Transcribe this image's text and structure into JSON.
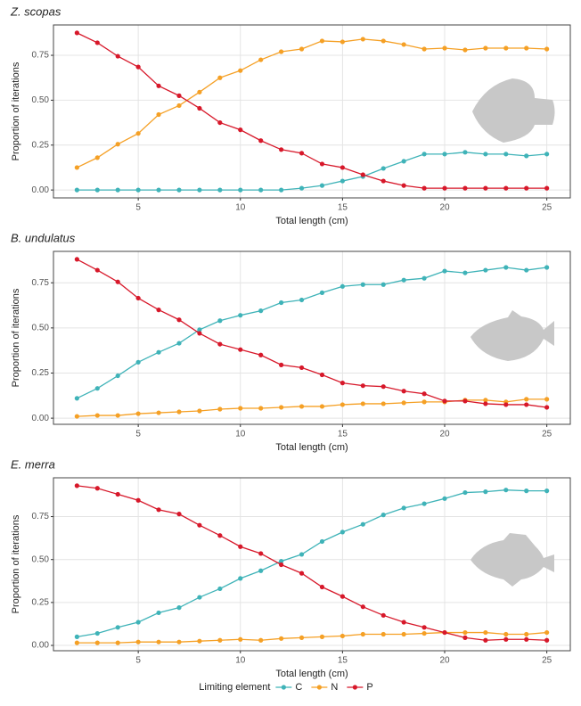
{
  "legend": {
    "title": "Limiting element",
    "position": "bottom"
  },
  "chart_data": [
    {
      "type": "line",
      "title": "Z. scopas",
      "x_label": "Total length (cm)",
      "y_label": "Proportion of iterations",
      "x": [
        2,
        3,
        4,
        5,
        6,
        7,
        8,
        9,
        10,
        11,
        12,
        13,
        14,
        15,
        16,
        17,
        18,
        19,
        20,
        21,
        22,
        23,
        24,
        25
      ],
      "xlim": [
        0.85,
        26.15
      ],
      "xticks": [
        5,
        10,
        15,
        20,
        25
      ],
      "ylim": [
        -0.044,
        0.919
      ],
      "yticks": [
        {
          "value": 0,
          "label": "0.00"
        },
        {
          "value": 0.25,
          "label": "0.25"
        },
        {
          "value": 0.5,
          "label": "0.50"
        },
        {
          "value": 0.75,
          "label": "0.75"
        }
      ],
      "grid": true,
      "series": [
        {
          "name": "C",
          "color": "#3fb3b8",
          "values": [
            0,
            0,
            0,
            0,
            0,
            0,
            0,
            0,
            0,
            0,
            0,
            0.01,
            0.025,
            0.05,
            0.075,
            0.12,
            0.16,
            0.2,
            0.2,
            0.21,
            0.2,
            0.2,
            0.19,
            0.2
          ]
        },
        {
          "name": "N",
          "color": "#f5a025",
          "values": [
            0.125,
            0.18,
            0.255,
            0.315,
            0.42,
            0.47,
            0.545,
            0.625,
            0.665,
            0.725,
            0.77,
            0.785,
            0.83,
            0.825,
            0.84,
            0.83,
            0.81,
            0.785,
            0.79,
            0.78,
            0.79,
            0.79,
            0.79,
            0.785
          ]
        },
        {
          "name": "P",
          "color": "#d7182a",
          "values": [
            0.875,
            0.82,
            0.745,
            0.685,
            0.58,
            0.525,
            0.455,
            0.375,
            0.335,
            0.275,
            0.225,
            0.205,
            0.145,
            0.125,
            0.085,
            0.05,
            0.025,
            0.01,
            0.01,
            0.01,
            0.01,
            0.01,
            0.01,
            0.01
          ]
        }
      ]
    },
    {
      "type": "line",
      "title": "B. undulatus",
      "x_label": "Total length (cm)",
      "y_label": "Proportion of iterations",
      "x": [
        2,
        3,
        4,
        5,
        6,
        7,
        8,
        9,
        10,
        11,
        12,
        13,
        14,
        15,
        16,
        17,
        18,
        19,
        20,
        21,
        22,
        23,
        24,
        25
      ],
      "xlim": [
        0.85,
        26.15
      ],
      "xticks": [
        5,
        10,
        15,
        20,
        25
      ],
      "ylim": [
        -0.034,
        0.924
      ],
      "yticks": [
        {
          "value": 0,
          "label": "0.00"
        },
        {
          "value": 0.25,
          "label": "0.25"
        },
        {
          "value": 0.5,
          "label": "0.50"
        },
        {
          "value": 0.75,
          "label": "0.75"
        }
      ],
      "grid": true,
      "series": [
        {
          "color": "#3fb3b8",
          "values": [
            0.11,
            0.165,
            0.235,
            0.31,
            0.365,
            0.415,
            0.49,
            0.54,
            0.57,
            0.595,
            0.64,
            0.655,
            0.695,
            0.73,
            0.74,
            0.74,
            0.765,
            0.775,
            0.815,
            0.805,
            0.82,
            0.835,
            0.82,
            0.835
          ]
        },
        {
          "color": "#f5a025",
          "values": [
            0.01,
            0.015,
            0.015,
            0.025,
            0.03,
            0.035,
            0.04,
            0.05,
            0.055,
            0.055,
            0.06,
            0.065,
            0.065,
            0.075,
            0.08,
            0.08,
            0.085,
            0.09,
            0.09,
            0.1,
            0.1,
            0.09,
            0.105,
            0.105
          ]
        },
        {
          "color": "#d7182a",
          "values": [
            0.88,
            0.82,
            0.755,
            0.665,
            0.6,
            0.545,
            0.47,
            0.41,
            0.38,
            0.35,
            0.295,
            0.28,
            0.24,
            0.195,
            0.18,
            0.175,
            0.15,
            0.135,
            0.095,
            0.095,
            0.08,
            0.075,
            0.075,
            0.06
          ]
        }
      ]
    },
    {
      "type": "line",
      "title": "E. merra",
      "x_label": "Total length (cm)",
      "y_label": "Proportion of iterations",
      "x": [
        2,
        3,
        4,
        5,
        6,
        7,
        8,
        9,
        10,
        11,
        12,
        13,
        14,
        15,
        16,
        17,
        18,
        19,
        20,
        21,
        22,
        23,
        24,
        25
      ],
      "xlim": [
        0.85,
        26.15
      ],
      "xticks": [
        5,
        10,
        15,
        20,
        25
      ],
      "ylim": [
        -0.031,
        0.976
      ],
      "yticks": [
        {
          "value": 0,
          "label": "0.00"
        },
        {
          "value": 0.25,
          "label": "0.25"
        },
        {
          "value": 0.5,
          "label": "0.50"
        },
        {
          "value": 0.75,
          "label": "0.75"
        }
      ],
      "grid": true,
      "series": [
        {
          "color": "#3fb3b8",
          "values": [
            0.05,
            0.07,
            0.105,
            0.135,
            0.19,
            0.22,
            0.28,
            0.33,
            0.39,
            0.435,
            0.49,
            0.53,
            0.605,
            0.66,
            0.705,
            0.76,
            0.8,
            0.825,
            0.855,
            0.89,
            0.895,
            0.905,
            0.9,
            0.9
          ]
        },
        {
          "color": "#f5a025",
          "values": [
            0.015,
            0.015,
            0.015,
            0.02,
            0.02,
            0.02,
            0.025,
            0.03,
            0.035,
            0.03,
            0.04,
            0.045,
            0.05,
            0.055,
            0.065,
            0.065,
            0.065,
            0.07,
            0.075,
            0.075,
            0.075,
            0.065,
            0.065,
            0.075
          ]
        },
        {
          "color": "#d7182a",
          "values": [
            0.93,
            0.915,
            0.88,
            0.845,
            0.79,
            0.765,
            0.7,
            0.64,
            0.575,
            0.535,
            0.47,
            0.42,
            0.34,
            0.285,
            0.225,
            0.175,
            0.135,
            0.105,
            0.075,
            0.045,
            0.03,
            0.035,
            0.035,
            0.03
          ]
        }
      ]
    }
  ]
}
